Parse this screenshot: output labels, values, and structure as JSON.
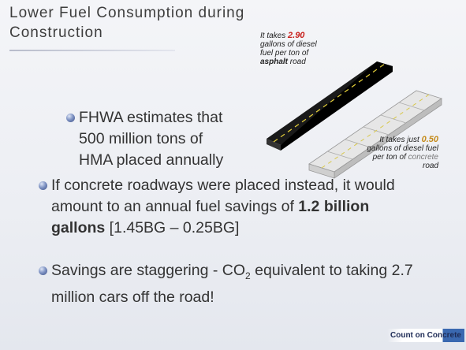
{
  "header": {
    "title": "Lower Fuel Consumption during Construction"
  },
  "figure": {
    "asphalt_caption": {
      "parts": [
        "It takes ",
        "2.90",
        " gallons of diesel fuel per ton of ",
        "asphalt",
        " road"
      ]
    },
    "concrete_caption": {
      "parts": [
        "It takes just ",
        "0.50",
        " gallons of diesel fuel per ton of ",
        "concrete",
        " road"
      ]
    }
  },
  "bullets": [
    {
      "lines": [
        "FHWA estimates that",
        "500 million tons of",
        "HMA placed annually"
      ]
    },
    {
      "parts": [
        "If concrete roadways were placed instead, it would amount to an annual fuel savings of ",
        "1.2 billion gallons",
        " [1.45BG – 0.25BG]"
      ]
    },
    {
      "parts": [
        "Savings are staggering -  CO",
        "2",
        " equivalent to taking 2.7 million cars off the road!"
      ]
    }
  ],
  "footer": {
    "logo": "Count on Concrete"
  }
}
